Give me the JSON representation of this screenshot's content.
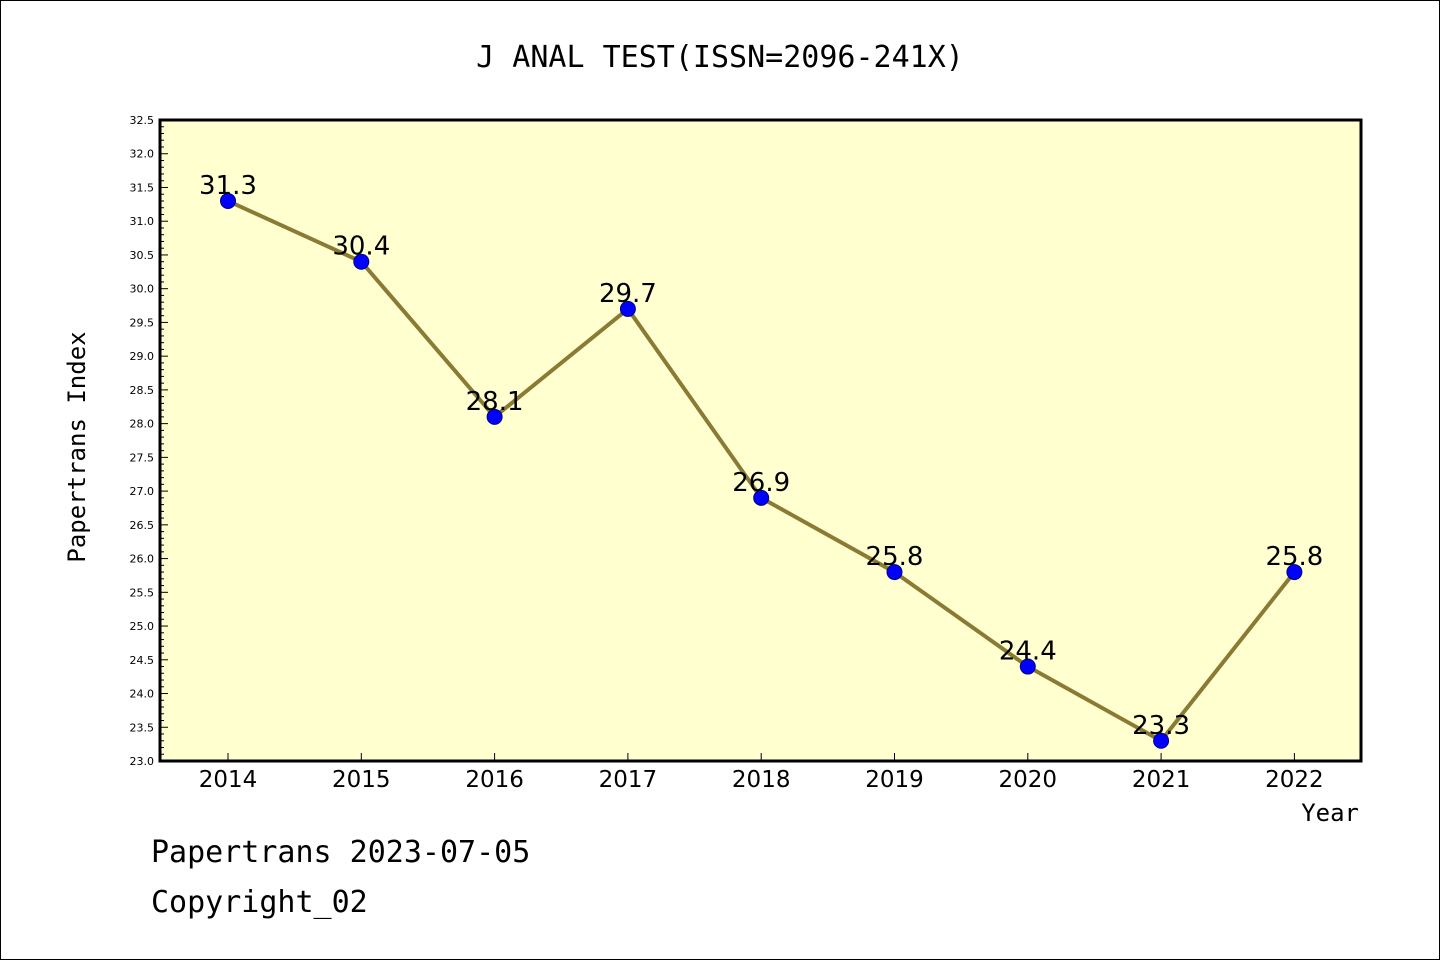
{
  "footer": {
    "line1": "Papertrans 2023-07-05",
    "line2": "Copyright_02"
  },
  "colors": {
    "plot_background": "#ffffd0",
    "line": "#8b7a34",
    "marker": "#0000ff",
    "marker_edge": "#000080"
  },
  "chart_data": {
    "type": "line",
    "title": "J ANAL TEST(ISSN=2096-241X)",
    "xlabel": "Year",
    "ylabel": "Papertrans Index",
    "categories": [
      "2014",
      "2015",
      "2016",
      "2017",
      "2018",
      "2019",
      "2020",
      "2021",
      "2022"
    ],
    "values": [
      31.3,
      30.4,
      28.1,
      29.7,
      26.9,
      25.8,
      24.4,
      23.3,
      25.8
    ],
    "data_labels": [
      "31.3",
      "30.4",
      "28.1",
      "29.7",
      "26.9",
      "25.8",
      "24.4",
      "23.3",
      "25.8"
    ],
    "ylim": [
      23.0,
      32.5
    ],
    "yticks": [
      "23.0",
      "23.5",
      "24.0",
      "24.5",
      "25.0",
      "25.5",
      "26.0",
      "26.5",
      "27.0",
      "27.5",
      "28.0",
      "28.5",
      "29.0",
      "29.5",
      "30.0",
      "30.5",
      "31.0",
      "31.5",
      "32.0",
      "32.5"
    ],
    "grid": false,
    "legend": "none"
  }
}
